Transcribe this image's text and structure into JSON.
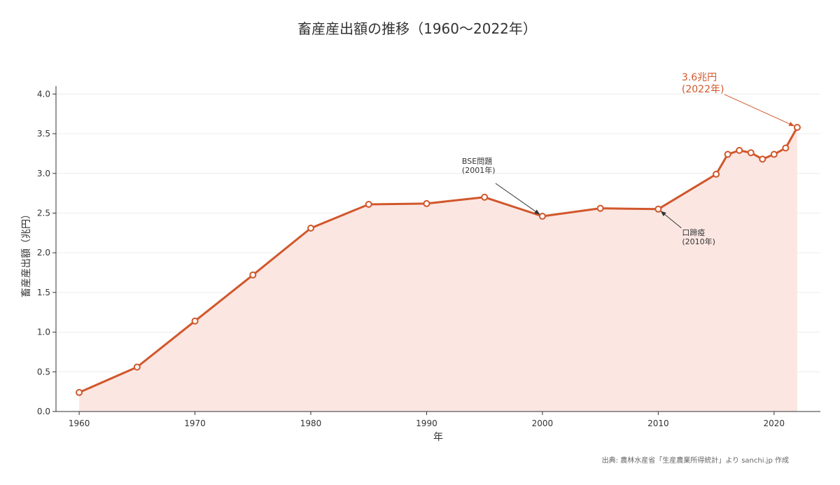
{
  "chart_data": {
    "type": "area",
    "title": "畜産産出額の推移（1960〜2022年）",
    "xlabel": "年",
    "ylabel": "畜産産出額（兆円）",
    "xlim": [
      1958,
      2024
    ],
    "ylim": [
      0,
      4.1
    ],
    "xticks": [
      "1960",
      "1970",
      "1980",
      "1990",
      "2000",
      "2010",
      "2020"
    ],
    "yticks": [
      "0.0",
      "0.5",
      "1.0",
      "1.5",
      "2.0",
      "2.5",
      "3.0",
      "3.5",
      "4.0"
    ],
    "grid": true,
    "series": [
      {
        "x": [
          1960,
          1965,
          1970,
          1975,
          1980,
          1985,
          1990,
          1995,
          2000,
          2005,
          2010,
          2015,
          2016,
          2017,
          2018,
          2019,
          2020,
          2021,
          2022
        ],
        "y": [
          0.24,
          0.56,
          1.14,
          1.72,
          2.31,
          2.61,
          2.62,
          2.7,
          2.46,
          2.56,
          2.55,
          2.99,
          3.24,
          3.29,
          3.26,
          3.18,
          3.24,
          3.32,
          3.58
        ]
      }
    ],
    "annotations": [
      {
        "lines": [
          "BSE問題",
          "(2001年)"
        ],
        "x": 2000,
        "y": 2.46
      },
      {
        "lines": [
          "口蹄疫",
          "(2010年)"
        ],
        "x": 2010,
        "y": 2.55
      },
      {
        "lines": [
          "3.6兆円",
          "(2022年)"
        ],
        "x": 2022,
        "y": 3.58,
        "highlight": true
      }
    ],
    "colors": {
      "line": "#d1572b",
      "fill": "#fbe6e2",
      "grid": "#ececec",
      "axis": "#333333"
    }
  },
  "source": "出典: 農林水産省「生産農業所得統計」より sanchi.jp 作成"
}
